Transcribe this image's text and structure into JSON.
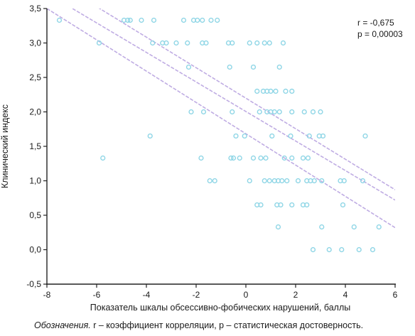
{
  "chart_data": {
    "type": "scatter",
    "title": "",
    "xlabel": "Показатель шкалы обсессивно-фобических нарушений, баллы",
    "ylabel": "Клинический индекс",
    "xlim": [
      -8,
      6
    ],
    "ylim": [
      -0.5,
      3.5
    ],
    "xticks": [
      "-8",
      "-6",
      "-4",
      "-2",
      "0",
      "2",
      "4",
      "6"
    ],
    "yticks": [
      "-0,5",
      "0,0",
      "0,5",
      "1,0",
      "1,5",
      "2,0",
      "2,5",
      "3,0",
      "3,5"
    ],
    "stats": {
      "r": "r = -0,675",
      "p": "p = 0,00003"
    },
    "grid": false,
    "colors": {
      "points": "#8fd6e6",
      "fit_line": "#b9a4e0",
      "axis": "#222222"
    },
    "points": [
      {
        "x": -7.5,
        "y": 3.33
      },
      {
        "x": -4.9,
        "y": 3.33
      },
      {
        "x": -4.75,
        "y": 3.33
      },
      {
        "x": -4.65,
        "y": 3.33
      },
      {
        "x": -4.2,
        "y": 3.33
      },
      {
        "x": -3.7,
        "y": 3.33
      },
      {
        "x": -2.5,
        "y": 3.33
      },
      {
        "x": -2.1,
        "y": 3.33
      },
      {
        "x": -1.95,
        "y": 3.33
      },
      {
        "x": -1.75,
        "y": 3.33
      },
      {
        "x": -1.4,
        "y": 3.33
      },
      {
        "x": -1.15,
        "y": 3.33
      },
      {
        "x": -5.9,
        "y": 3.0
      },
      {
        "x": -3.75,
        "y": 3.0
      },
      {
        "x": -3.35,
        "y": 3.0
      },
      {
        "x": -3.2,
        "y": 3.0
      },
      {
        "x": -2.8,
        "y": 3.0
      },
      {
        "x": -2.35,
        "y": 3.0
      },
      {
        "x": -1.75,
        "y": 3.0
      },
      {
        "x": -1.6,
        "y": 3.0
      },
      {
        "x": -0.7,
        "y": 3.0
      },
      {
        "x": -0.55,
        "y": 3.0
      },
      {
        "x": 0.15,
        "y": 3.0
      },
      {
        "x": 0.45,
        "y": 3.0
      },
      {
        "x": 0.75,
        "y": 3.0
      },
      {
        "x": 0.95,
        "y": 3.0
      },
      {
        "x": 1.5,
        "y": 3.0
      },
      {
        "x": -2.3,
        "y": 2.65
      },
      {
        "x": -0.65,
        "y": 2.65
      },
      {
        "x": 0.3,
        "y": 2.65
      },
      {
        "x": 1.35,
        "y": 2.65
      },
      {
        "x": 0.45,
        "y": 2.3
      },
      {
        "x": 0.7,
        "y": 2.3
      },
      {
        "x": 0.85,
        "y": 2.3
      },
      {
        "x": 1.0,
        "y": 2.3
      },
      {
        "x": 1.2,
        "y": 2.3
      },
      {
        "x": 1.6,
        "y": 2.3
      },
      {
        "x": 1.85,
        "y": 2.3
      },
      {
        "x": -2.2,
        "y": 2.0
      },
      {
        "x": -1.7,
        "y": 2.0
      },
      {
        "x": -0.55,
        "y": 2.0
      },
      {
        "x": 0.55,
        "y": 2.0
      },
      {
        "x": 0.85,
        "y": 2.0
      },
      {
        "x": 1.0,
        "y": 2.0
      },
      {
        "x": 1.15,
        "y": 2.0
      },
      {
        "x": 1.35,
        "y": 2.0
      },
      {
        "x": 1.85,
        "y": 2.0
      },
      {
        "x": 2.35,
        "y": 2.0
      },
      {
        "x": 2.7,
        "y": 2.0
      },
      {
        "x": 3.0,
        "y": 2.0
      },
      {
        "x": -3.85,
        "y": 1.65
      },
      {
        "x": -0.4,
        "y": 1.65
      },
      {
        "x": -0.05,
        "y": 1.65
      },
      {
        "x": 1.05,
        "y": 1.65
      },
      {
        "x": 1.8,
        "y": 1.65
      },
      {
        "x": 2.55,
        "y": 1.65
      },
      {
        "x": 2.95,
        "y": 1.65
      },
      {
        "x": 3.1,
        "y": 1.65
      },
      {
        "x": 4.8,
        "y": 1.65
      },
      {
        "x": -5.75,
        "y": 1.33
      },
      {
        "x": -1.8,
        "y": 1.33
      },
      {
        "x": -0.6,
        "y": 1.33
      },
      {
        "x": -0.5,
        "y": 1.33
      },
      {
        "x": -0.25,
        "y": 1.33
      },
      {
        "x": 0.3,
        "y": 1.33
      },
      {
        "x": 0.6,
        "y": 1.33
      },
      {
        "x": 0.8,
        "y": 1.33
      },
      {
        "x": 1.55,
        "y": 1.33
      },
      {
        "x": 1.85,
        "y": 1.33
      },
      {
        "x": 2.3,
        "y": 1.33
      },
      {
        "x": 2.5,
        "y": 1.33
      },
      {
        "x": -1.45,
        "y": 1.0
      },
      {
        "x": -1.25,
        "y": 1.0
      },
      {
        "x": 0.15,
        "y": 1.0
      },
      {
        "x": 0.75,
        "y": 1.0
      },
      {
        "x": 0.95,
        "y": 1.0
      },
      {
        "x": 1.15,
        "y": 1.0
      },
      {
        "x": 1.3,
        "y": 1.0
      },
      {
        "x": 1.45,
        "y": 1.0
      },
      {
        "x": 1.65,
        "y": 1.0
      },
      {
        "x": 2.1,
        "y": 1.0
      },
      {
        "x": 2.45,
        "y": 1.0
      },
      {
        "x": 2.6,
        "y": 1.0
      },
      {
        "x": 2.75,
        "y": 1.0
      },
      {
        "x": 3.05,
        "y": 1.0
      },
      {
        "x": 3.8,
        "y": 1.0
      },
      {
        "x": 3.95,
        "y": 1.0
      },
      {
        "x": 4.7,
        "y": 1.0
      },
      {
        "x": 0.45,
        "y": 0.65
      },
      {
        "x": 0.6,
        "y": 0.65
      },
      {
        "x": 1.25,
        "y": 0.65
      },
      {
        "x": 1.4,
        "y": 0.65
      },
      {
        "x": 1.85,
        "y": 0.65
      },
      {
        "x": 2.3,
        "y": 0.65
      },
      {
        "x": 2.45,
        "y": 0.65
      },
      {
        "x": 3.9,
        "y": 0.65
      },
      {
        "x": 1.3,
        "y": 0.33
      },
      {
        "x": 3.05,
        "y": 0.33
      },
      {
        "x": 4.35,
        "y": 0.33
      },
      {
        "x": 5.35,
        "y": 0.33
      },
      {
        "x": 2.7,
        "y": 0.0
      },
      {
        "x": 3.35,
        "y": 0.0
      },
      {
        "x": 3.85,
        "y": 0.0
      },
      {
        "x": 4.55,
        "y": 0.0
      },
      {
        "x": 5.1,
        "y": 0.0
      }
    ],
    "fit": {
      "line": {
        "x": [
          -8,
          6
        ],
        "y": [
          3.72,
          0.72
        ]
      },
      "upper": {
        "x": [
          -8,
          6
        ],
        "y": [
          3.97,
          0.87
        ]
      },
      "lower": {
        "x": [
          -8,
          6
        ],
        "y": [
          3.5,
          0.32
        ]
      }
    }
  },
  "footnote": {
    "label": "Обозначения.",
    "text": " r – коэффициент корреляции, p – статистическая достоверность."
  }
}
